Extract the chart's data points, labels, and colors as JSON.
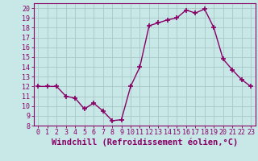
{
  "x": [
    0,
    1,
    2,
    3,
    4,
    5,
    6,
    7,
    8,
    9,
    10,
    11,
    12,
    13,
    14,
    15,
    16,
    17,
    18,
    19,
    20,
    21,
    22,
    23
  ],
  "y": [
    12,
    12,
    12,
    11,
    10.8,
    9.7,
    10.3,
    9.5,
    8.5,
    8.6,
    12,
    14,
    18.2,
    18.5,
    18.8,
    19.0,
    19.8,
    19.5,
    19.9,
    18.0,
    14.8,
    13.7,
    12.7,
    12.0
  ],
  "line_color": "#880066",
  "marker": "+",
  "markersize": 4,
  "markeredgewidth": 1.2,
  "linewidth": 1.0,
  "background_color": "#c8e8e8",
  "grid_color": "#a8c8c8",
  "xlabel": "Windchill (Refroidissement éolien,°C)",
  "xlabel_fontsize": 7.5,
  "tick_fontsize": 6.0,
  "ytick_min": 8,
  "ytick_max": 20,
  "ylim_top": 20.5,
  "xlim": [
    -0.5,
    23.5
  ]
}
